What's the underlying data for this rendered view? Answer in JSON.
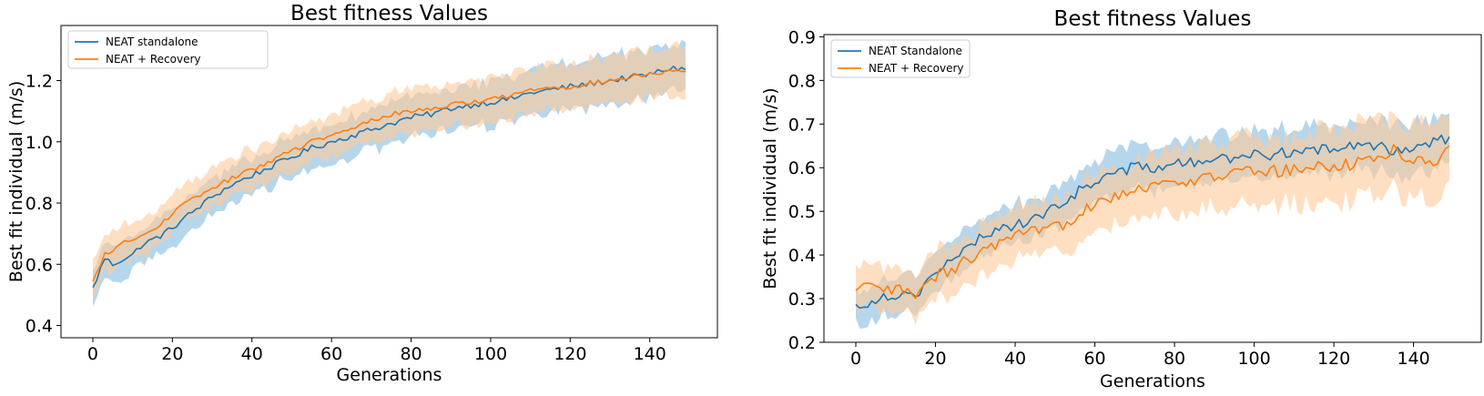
{
  "chart_data": [
    {
      "type": "line",
      "title": "Best fitness Values",
      "xlabel": "Generations",
      "ylabel": "Best fit individual (m/s)",
      "xlim": [
        -8,
        157
      ],
      "ylim": [
        0.36,
        1.38
      ],
      "xticks": [
        0,
        20,
        40,
        60,
        80,
        100,
        120,
        140
      ],
      "yticks": [
        0.4,
        0.6,
        0.8,
        1.0,
        1.2
      ],
      "ytick_decimals": 1,
      "legend_position": "top-left",
      "grid": false,
      "series": [
        {
          "name": "NEAT standalone",
          "color": "#1f77b4",
          "band_color": "#9ec8e6",
          "anchors": [
            [
              0,
              0.52
            ],
            [
              3,
              0.62
            ],
            [
              5,
              0.6
            ],
            [
              8,
              0.62
            ],
            [
              10,
              0.63
            ],
            [
              12,
              0.66
            ],
            [
              15,
              0.68
            ],
            [
              18,
              0.7
            ],
            [
              20,
              0.72
            ],
            [
              25,
              0.77
            ],
            [
              30,
              0.82
            ],
            [
              35,
              0.86
            ],
            [
              40,
              0.89
            ],
            [
              45,
              0.92
            ],
            [
              50,
              0.95
            ],
            [
              55,
              0.98
            ],
            [
              60,
              1.0
            ],
            [
              65,
              1.02
            ],
            [
              70,
              1.04
            ],
            [
              75,
              1.06
            ],
            [
              80,
              1.08
            ],
            [
              85,
              1.09
            ],
            [
              90,
              1.11
            ],
            [
              95,
              1.12
            ],
            [
              100,
              1.13
            ],
            [
              105,
              1.14
            ],
            [
              110,
              1.16
            ],
            [
              115,
              1.17
            ],
            [
              120,
              1.18
            ],
            [
              125,
              1.19
            ],
            [
              130,
              1.2
            ],
            [
              135,
              1.21
            ],
            [
              140,
              1.22
            ],
            [
              145,
              1.24
            ],
            [
              149,
              1.24
            ]
          ],
          "band": [
            0.055,
            0.08
          ],
          "noise": 0.01
        },
        {
          "name": "NEAT + Recovery",
          "color": "#ff7f0e",
          "band_color": "#ffc999",
          "anchors": [
            [
              0,
              0.54
            ],
            [
              3,
              0.63
            ],
            [
              5,
              0.65
            ],
            [
              8,
              0.67
            ],
            [
              10,
              0.68
            ],
            [
              12,
              0.69
            ],
            [
              15,
              0.71
            ],
            [
              18,
              0.74
            ],
            [
              20,
              0.77
            ],
            [
              25,
              0.81
            ],
            [
              30,
              0.85
            ],
            [
              35,
              0.88
            ],
            [
              40,
              0.91
            ],
            [
              45,
              0.94
            ],
            [
              50,
              0.97
            ],
            [
              55,
              1.0
            ],
            [
              60,
              1.02
            ],
            [
              65,
              1.04
            ],
            [
              70,
              1.07
            ],
            [
              75,
              1.09
            ],
            [
              80,
              1.1
            ],
            [
              85,
              1.11
            ],
            [
              90,
              1.12
            ],
            [
              95,
              1.13
            ],
            [
              100,
              1.14
            ],
            [
              105,
              1.15
            ],
            [
              110,
              1.17
            ],
            [
              115,
              1.18
            ],
            [
              120,
              1.18
            ],
            [
              125,
              1.19
            ],
            [
              130,
              1.2
            ],
            [
              135,
              1.21
            ],
            [
              140,
              1.22
            ],
            [
              145,
              1.23
            ],
            [
              149,
              1.23
            ]
          ],
          "band": [
            0.06,
            0.08
          ],
          "noise": 0.008
        }
      ]
    },
    {
      "type": "line",
      "title": "Best fitness Values",
      "xlabel": "Generations",
      "ylabel": "Best fit individual (m/s)",
      "xlim": [
        -8,
        157
      ],
      "ylim": [
        0.2,
        0.905
      ],
      "xticks": [
        0,
        20,
        40,
        60,
        80,
        100,
        120,
        140
      ],
      "yticks": [
        0.2,
        0.3,
        0.4,
        0.5,
        0.6,
        0.7,
        0.8,
        0.9
      ],
      "ytick_decimals": 1,
      "legend_position": "top-left",
      "grid": false,
      "series": [
        {
          "name": "NEAT Standalone",
          "color": "#1f77b4",
          "band_color": "#9ec8e6",
          "anchors": [
            [
              0,
              0.28
            ],
            [
              5,
              0.3
            ],
            [
              10,
              0.31
            ],
            [
              15,
              0.31
            ],
            [
              17,
              0.33
            ],
            [
              20,
              0.36
            ],
            [
              25,
              0.39
            ],
            [
              30,
              0.43
            ],
            [
              35,
              0.46
            ],
            [
              40,
              0.47
            ],
            [
              45,
              0.48
            ],
            [
              50,
              0.51
            ],
            [
              55,
              0.54
            ],
            [
              60,
              0.57
            ],
            [
              65,
              0.59
            ],
            [
              70,
              0.6
            ],
            [
              75,
              0.6
            ],
            [
              80,
              0.61
            ],
            [
              85,
              0.61
            ],
            [
              90,
              0.62
            ],
            [
              95,
              0.62
            ],
            [
              100,
              0.63
            ],
            [
              105,
              0.63
            ],
            [
              110,
              0.64
            ],
            [
              115,
              0.64
            ],
            [
              120,
              0.64
            ],
            [
              125,
              0.65
            ],
            [
              130,
              0.65
            ],
            [
              135,
              0.64
            ],
            [
              140,
              0.65
            ],
            [
              145,
              0.66
            ],
            [
              149,
              0.67
            ]
          ],
          "band": [
            0.04,
            0.06
          ],
          "noise": 0.013
        },
        {
          "name": "NEAT + Recovery",
          "color": "#ff7f0e",
          "band_color": "#ffc999",
          "anchors": [
            [
              0,
              0.31
            ],
            [
              3,
              0.33
            ],
            [
              5,
              0.32
            ],
            [
              10,
              0.32
            ],
            [
              15,
              0.31
            ],
            [
              17,
              0.32
            ],
            [
              20,
              0.35
            ],
            [
              25,
              0.37
            ],
            [
              30,
              0.4
            ],
            [
              35,
              0.42
            ],
            [
              40,
              0.44
            ],
            [
              45,
              0.45
            ],
            [
              50,
              0.46
            ],
            [
              55,
              0.49
            ],
            [
              60,
              0.52
            ],
            [
              65,
              0.54
            ],
            [
              70,
              0.55
            ],
            [
              75,
              0.56
            ],
            [
              80,
              0.57
            ],
            [
              85,
              0.57
            ],
            [
              90,
              0.58
            ],
            [
              95,
              0.59
            ],
            [
              100,
              0.59
            ],
            [
              105,
              0.59
            ],
            [
              110,
              0.6
            ],
            [
              115,
              0.6
            ],
            [
              120,
              0.6
            ],
            [
              125,
              0.61
            ],
            [
              130,
              0.62
            ],
            [
              135,
              0.64
            ],
            [
              140,
              0.62
            ],
            [
              145,
              0.61
            ],
            [
              149,
              0.64
            ]
          ],
          "band": [
            0.05,
            0.09
          ],
          "noise": 0.016
        }
      ]
    }
  ]
}
